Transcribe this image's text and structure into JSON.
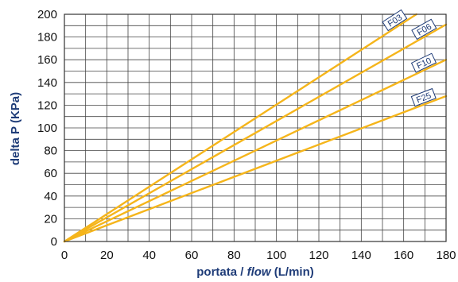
{
  "chart_data": {
    "type": "line",
    "xlabel": {
      "prefix": "portata / ",
      "italic": "flow",
      "suffix": " (L/min)"
    },
    "ylabel": "delta P (KPa)",
    "xlim": [
      0,
      180
    ],
    "ylim": [
      0,
      200
    ],
    "x_ticks": [
      0,
      20,
      40,
      60,
      80,
      100,
      120,
      140,
      160,
      180
    ],
    "y_ticks": [
      0,
      20,
      40,
      60,
      80,
      100,
      120,
      140,
      160,
      180,
      200
    ],
    "x_minor_step": 10,
    "y_minor_step": 10,
    "grid": true,
    "line_color": "#f5b51b",
    "grid_color": "#444444",
    "label_color": "#1f3c78",
    "series": [
      {
        "name": "F03",
        "points": [
          [
            0,
            0
          ],
          [
            166,
            200
          ]
        ]
      },
      {
        "name": "F06",
        "points": [
          [
            0,
            0
          ],
          [
            180,
            191
          ]
        ]
      },
      {
        "name": "F10",
        "points": [
          [
            0,
            0
          ],
          [
            180,
            160
          ]
        ]
      },
      {
        "name": "F25",
        "points": [
          [
            0,
            0
          ],
          [
            180,
            128
          ]
        ]
      }
    ]
  }
}
